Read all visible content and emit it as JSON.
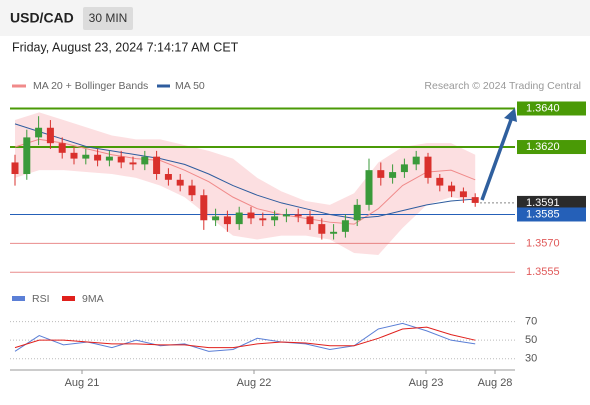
{
  "header": {
    "symbol": "USD/CAD",
    "timeframe": "30 MIN",
    "timestamp": "Friday, August 23, 2024 7:14:17 AM CET",
    "source": "Research © 2024 Trading Central"
  },
  "chart_data": [
    {
      "type": "candlestick",
      "up_color": "#3a9a3a",
      "down_color": "#d9302c",
      "ylim": [
        1.3551,
        1.3647
      ],
      "open": [
        1.3612,
        1.3606,
        1.3625,
        1.363,
        1.3622,
        1.3617,
        1.3614,
        1.3616,
        1.3613,
        1.3615,
        1.3612,
        1.3611,
        1.3615,
        1.3606,
        1.3603,
        1.36,
        1.3595,
        1.3582,
        1.3584,
        1.358,
        1.3586,
        1.3583,
        1.3582,
        1.3584,
        1.3585,
        1.3584,
        1.358,
        1.3575,
        1.3576,
        1.3582,
        1.359,
        1.3608,
        1.3604,
        1.3607,
        1.3611,
        1.3615,
        1.3604,
        1.36,
        1.3597,
        1.3594
      ],
      "high": [
        1.3616,
        1.3629,
        1.3636,
        1.3634,
        1.3625,
        1.362,
        1.3619,
        1.3619,
        1.3618,
        1.3618,
        1.3615,
        1.3618,
        1.3618,
        1.3609,
        1.3606,
        1.3603,
        1.3598,
        1.3588,
        1.3587,
        1.3589,
        1.3589,
        1.3586,
        1.3587,
        1.3588,
        1.3588,
        1.3587,
        1.3583,
        1.358,
        1.3585,
        1.3593,
        1.3614,
        1.3612,
        1.3611,
        1.3614,
        1.3618,
        1.3617,
        1.3606,
        1.3602,
        1.3599,
        1.3596
      ],
      "low": [
        1.36,
        1.3603,
        1.3621,
        1.3619,
        1.3614,
        1.3611,
        1.3611,
        1.361,
        1.361,
        1.3609,
        1.3608,
        1.3608,
        1.3603,
        1.36,
        1.3597,
        1.3592,
        1.3577,
        1.3579,
        1.3576,
        1.3577,
        1.358,
        1.3579,
        1.3579,
        1.3581,
        1.3581,
        1.3577,
        1.3572,
        1.3572,
        1.3573,
        1.3579,
        1.3587,
        1.36,
        1.3601,
        1.3604,
        1.3608,
        1.3601,
        1.3597,
        1.3594,
        1.3591,
        1.3589
      ],
      "close": [
        1.3606,
        1.3625,
        1.363,
        1.3622,
        1.3617,
        1.3614,
        1.3616,
        1.3613,
        1.3615,
        1.3612,
        1.3611,
        1.3615,
        1.3606,
        1.3603,
        1.36,
        1.3595,
        1.3582,
        1.3584,
        1.358,
        1.3586,
        1.3583,
        1.3582,
        1.3584,
        1.3585,
        1.3584,
        1.358,
        1.3575,
        1.3576,
        1.3582,
        1.359,
        1.3608,
        1.3604,
        1.3607,
        1.3611,
        1.3615,
        1.3604,
        1.36,
        1.3597,
        1.3594,
        1.3591
      ],
      "bands": {
        "name": "MA 20 + Bollinger Bands",
        "color": "#f08a8a",
        "fill": "#fbd9dc",
        "mid": [
          1.362,
          1.3624,
          1.3622,
          1.3619,
          1.3616,
          1.3614,
          1.3613,
          1.3608,
          1.3602,
          1.3594,
          1.3588,
          1.3585,
          1.3583,
          1.3581,
          1.358,
          1.3588,
          1.36,
          1.3607,
          1.3608,
          1.3603
        ],
        "upper": [
          1.3634,
          1.3638,
          1.3634,
          1.363,
          1.3626,
          1.3624,
          1.3624,
          1.3621,
          1.3618,
          1.3614,
          1.3604,
          1.3597,
          1.3592,
          1.359,
          1.3596,
          1.3612,
          1.362,
          1.3622,
          1.3622,
          1.3616
        ],
        "lower": [
          1.3604,
          1.3608,
          1.3608,
          1.3607,
          1.3606,
          1.3604,
          1.36,
          1.3594,
          1.3584,
          1.3574,
          1.3572,
          1.3574,
          1.3574,
          1.3572,
          1.3565,
          1.3564,
          1.3578,
          1.359,
          1.3594,
          1.3592
        ]
      },
      "series": [
        {
          "name": "MA 50",
          "color": "#2e5c9e",
          "values": [
            1.3632,
            1.3628,
            1.3624,
            1.362,
            1.3618,
            1.3616,
            1.3614,
            1.3611,
            1.3606,
            1.36,
            1.3595,
            1.3591,
            1.3588,
            1.3585,
            1.3583,
            1.3584,
            1.3587,
            1.359,
            1.3592,
            1.3593
          ]
        }
      ],
      "levels": [
        {
          "value": 1.364,
          "label": "1.3640",
          "color": "#4a9a06",
          "style": "box"
        },
        {
          "value": 1.362,
          "label": "1.3620",
          "color": "#4a9a06",
          "style": "box"
        },
        {
          "value": 1.3591,
          "label": "1.3591",
          "color": "#2b2b2b",
          "style": "current"
        },
        {
          "value": 1.3585,
          "label": "1.3585",
          "color": "#2560b8",
          "style": "box"
        },
        {
          "value": 1.357,
          "label": "1.3570",
          "color": "#e05a5a",
          "style": "text"
        },
        {
          "value": 1.3555,
          "label": "1.3555",
          "color": "#e05a5a",
          "style": "text"
        }
      ]
    },
    {
      "type": "line",
      "ylim": [
        19,
        76
      ],
      "yticks": [
        70,
        50,
        30
      ],
      "grid": true,
      "x_labels": [
        "Aug 21",
        "Aug 22",
        "Aug 23",
        "Aug 28"
      ],
      "series": [
        {
          "name": "RSI",
          "color": "#5b7fd6",
          "values": [
            38,
            55,
            45,
            48,
            42,
            50,
            44,
            46,
            38,
            40,
            52,
            48,
            46,
            40,
            44,
            62,
            68,
            60,
            50,
            46
          ]
        },
        {
          "name": "9MA",
          "color": "#e0201c",
          "values": [
            42,
            50,
            50,
            48,
            46,
            46,
            45,
            45,
            42,
            42,
            46,
            48,
            47,
            44,
            44,
            52,
            62,
            64,
            56,
            50
          ]
        }
      ]
    }
  ]
}
